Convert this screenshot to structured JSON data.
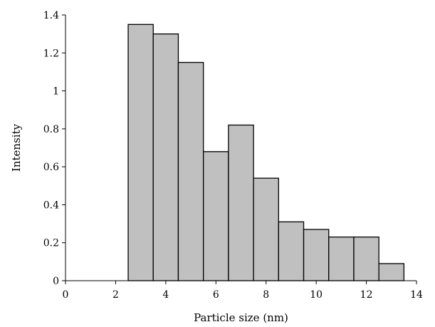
{
  "chart_data": {
    "type": "bar",
    "title": "",
    "xlabel": "Particle size (nm)",
    "ylabel": "Intensity",
    "xlim": [
      0,
      14
    ],
    "ylim": [
      0,
      1.4
    ],
    "xticks": [
      0,
      2,
      4,
      6,
      8,
      10,
      12,
      14
    ],
    "yticks": [
      0,
      0.2,
      0.4,
      0.6,
      0.8,
      1,
      1.2,
      1.4
    ],
    "xtick_labels": [
      "0",
      "2",
      "4",
      "6",
      "8",
      "10",
      "12",
      "14"
    ],
    "ytick_labels": [
      "0",
      "0.2",
      "0.4",
      "0.6",
      "0.8",
      "1",
      "1.2",
      "1.4"
    ],
    "bin_width": 1,
    "bin_centers": [
      3,
      4,
      5,
      6,
      7,
      8,
      9,
      10,
      11,
      12,
      13
    ],
    "values": [
      1.35,
      1.3,
      1.15,
      0.68,
      0.82,
      0.54,
      0.31,
      0.27,
      0.23,
      0.23,
      0.09
    ],
    "grid": false,
    "legend": "none",
    "colors": {
      "bar_fill": "#c0c0c0",
      "bar_stroke": "#000000"
    }
  }
}
